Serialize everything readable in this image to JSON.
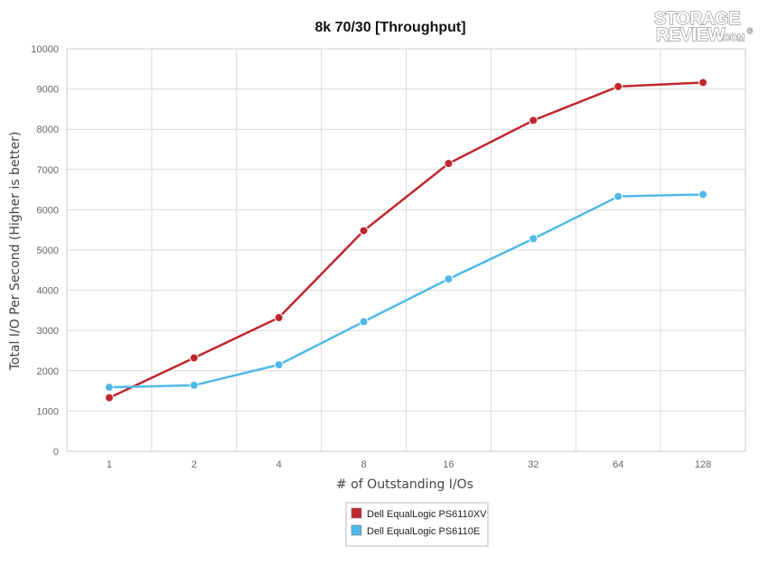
{
  "chart_data": {
    "type": "line",
    "title": "8k 70/30 [Throughput]",
    "xlabel": "# of Outstanding I/Os",
    "ylabel": "Total I/O Per Second (Higher is better)",
    "categories": [
      "1",
      "2",
      "4",
      "8",
      "16",
      "32",
      "64",
      "128"
    ],
    "ylim": [
      0,
      10000
    ],
    "yticks": [
      0,
      1000,
      2000,
      3000,
      4000,
      5000,
      6000,
      7000,
      8000,
      9000,
      10000
    ],
    "grid": true,
    "legend": "bottom-center",
    "series": [
      {
        "name": "Dell EqualLogic PS6110XV",
        "color": "#C0272D",
        "values": [
          1330,
          2320,
          3320,
          5480,
          7150,
          8220,
          9060,
          9160
        ]
      },
      {
        "name": "Dell EqualLogic PS6110E",
        "color": "#4FB9E8",
        "values": [
          1590,
          1640,
          2150,
          3220,
          4280,
          5280,
          6330,
          6380
        ]
      }
    ]
  },
  "logo": {
    "line1": "STORAGE",
    "line2": "REVIEW",
    "suffix": ".COM",
    "mark": "®"
  }
}
